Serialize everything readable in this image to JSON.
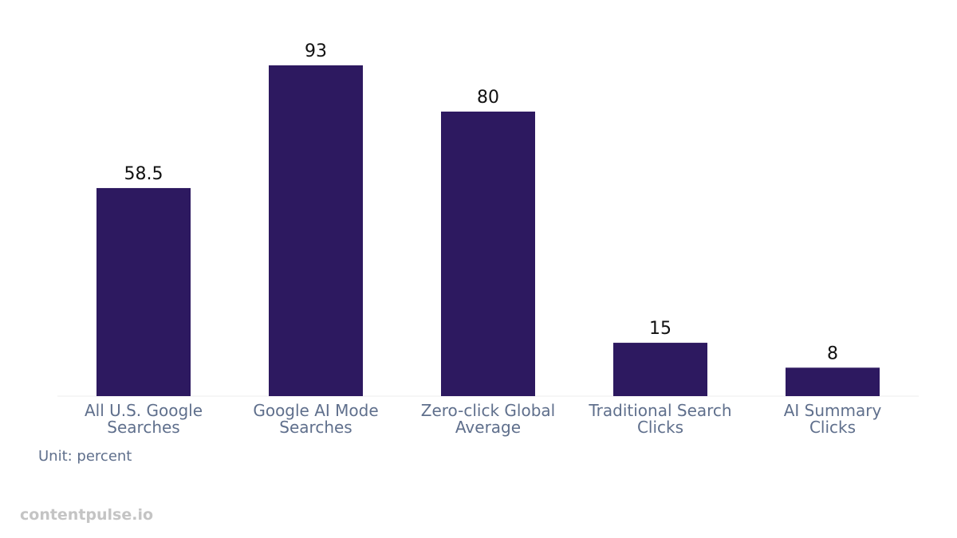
{
  "chart_data": {
    "type": "bar",
    "categories": [
      "All U.S. Google\nSearches",
      "Google AI Mode\nSearches",
      "Zero-click Global\nAverage",
      "Traditional Search\nClicks",
      "AI Summary\nClicks"
    ],
    "values": [
      58.5,
      93,
      80,
      15,
      8
    ],
    "color": "#2d1960",
    "unit_note": "Unit: percent",
    "watermark": "contentpulse.io"
  }
}
